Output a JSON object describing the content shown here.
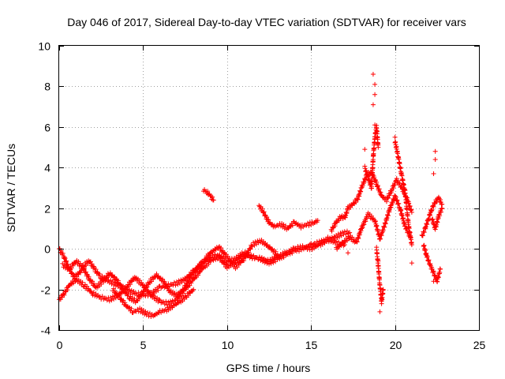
{
  "chart_data": {
    "type": "scatter",
    "title": "Day 046 of 2017, Sidereal Day-to-day VTEC variation (SDTVAR) for receiver vars",
    "xlabel": "GPS time / hours",
    "ylabel": "SDTVAR / TECUs",
    "xlim": [
      0,
      25
    ],
    "ylim": [
      -4,
      10
    ],
    "xticks": [
      0,
      5,
      10,
      15,
      20,
      25
    ],
    "yticks": [
      -4,
      -2,
      0,
      2,
      4,
      6,
      8,
      10
    ],
    "grid": true,
    "marker": "+",
    "series": [
      {
        "name": "SDTVAR",
        "color": "#ff0000",
        "segments": [
          {
            "x": [
              0.0,
              0.3,
              0.6,
              0.9,
              1.2,
              1.5,
              1.8,
              2.1,
              2.5,
              3.0,
              3.5,
              4.0,
              4.5,
              5.0,
              5.5,
              6.0,
              6.5,
              7.0,
              7.5,
              8.0,
              8.5,
              9.0,
              9.5,
              10.0,
              10.5,
              11.0,
              11.5,
              12.0,
              12.5,
              13.0,
              13.5,
              14.0,
              14.5,
              15.0,
              15.5,
              16.0,
              16.5,
              17.0,
              17.3
            ],
            "y": [
              0.0,
              -0.4,
              -1.0,
              -1.4,
              -1.2,
              -0.8,
              -0.6,
              -1.0,
              -1.4,
              -1.6,
              -1.8,
              -2.0,
              -2.2,
              -2.3,
              -2.2,
              -1.9,
              -1.8,
              -1.7,
              -1.5,
              -1.1,
              -0.7,
              -0.4,
              -0.3,
              -0.6,
              -0.5,
              -0.2,
              -0.4,
              -0.5,
              -0.6,
              -0.4,
              -0.2,
              0.0,
              0.1,
              0.0,
              0.2,
              0.4,
              0.6,
              0.8,
              0.8
            ]
          },
          {
            "x": [
              0.0,
              0.3,
              0.6,
              1.0,
              1.5,
              2.0,
              2.5,
              3.0,
              3.5,
              4.0,
              4.5,
              5.0,
              5.5,
              6.0,
              6.5,
              7.0,
              7.5,
              8.0,
              8.5,
              9.0,
              9.5,
              10.0,
              10.5,
              11.0,
              11.5,
              12.0,
              12.5,
              13.0,
              13.5,
              14.0,
              14.5,
              15.0,
              15.5,
              16.0,
              16.5,
              17.0
            ],
            "y": [
              -2.5,
              -2.2,
              -1.8,
              -1.5,
              -1.8,
              -2.2,
              -2.4,
              -2.5,
              -2.3,
              -1.9,
              -1.4,
              -1.8,
              -2.3,
              -2.6,
              -2.7,
              -2.5,
              -2.0,
              -1.5,
              -1.0,
              -0.6,
              -0.4,
              -0.9,
              -0.6,
              -0.3,
              -0.4,
              -0.5,
              -0.7,
              -0.5,
              -0.3,
              -0.1,
              0.0,
              0.2,
              0.3,
              0.5,
              0.3,
              0.2
            ]
          },
          {
            "x": [
              0.2,
              0.6,
              1.0,
              1.4,
              1.8,
              2.2,
              2.6,
              3.0,
              3.4,
              3.8,
              4.2,
              4.6,
              5.0,
              5.4,
              5.8,
              6.2,
              6.6,
              7.0,
              7.4,
              7.8,
              8.2,
              8.6,
              9.0,
              9.5,
              10.0,
              10.5,
              11.0,
              11.5,
              12.0,
              12.5,
              13.0
            ],
            "y": [
              -0.8,
              -1.0,
              -0.6,
              -0.9,
              -1.5,
              -1.9,
              -1.6,
              -1.2,
              -1.5,
              -2.0,
              -2.4,
              -2.6,
              -2.1,
              -1.6,
              -1.3,
              -1.6,
              -2.1,
              -2.3,
              -2.0,
              -1.4,
              -1.0,
              -0.6,
              -0.2,
              0.1,
              -0.4,
              -0.9,
              -0.5,
              0.2,
              0.4,
              0.1,
              -0.3
            ]
          },
          {
            "x": [
              3.2,
              3.6,
              4.0,
              4.4,
              4.8,
              5.2,
              5.6,
              6.0,
              6.4,
              6.8,
              7.2,
              7.6,
              8.0
            ],
            "y": [
              -2.0,
              -2.4,
              -2.8,
              -3.1,
              -3.0,
              -3.2,
              -3.3,
              -3.1,
              -3.0,
              -2.8,
              -2.6,
              -2.3,
              -2.0
            ]
          },
          {
            "x": [
              8.6,
              8.8,
              9.0,
              9.2
            ],
            "y": [
              2.9,
              2.8,
              2.6,
              2.4
            ]
          },
          {
            "x": [
              11.9,
              12.1,
              12.3,
              12.5,
              12.8,
              13.2,
              13.6,
              14.0,
              14.4,
              14.8,
              15.2,
              15.4
            ],
            "y": [
              2.1,
              1.9,
              1.6,
              1.3,
              1.1,
              1.2,
              1.0,
              1.3,
              1.1,
              1.2,
              1.3,
              1.4
            ]
          },
          {
            "x": [
              16.2,
              16.5,
              16.8,
              17.0,
              17.2,
              17.5,
              17.8,
              18.0,
              18.3,
              18.6,
              18.9,
              19.2,
              19.5,
              19.8,
              20.1,
              20.4,
              20.7,
              21.0
            ],
            "y": [
              0.9,
              1.3,
              1.6,
              1.5,
              2.0,
              2.2,
              2.5,
              3.0,
              3.6,
              3.8,
              3.2,
              2.6,
              2.4,
              2.9,
              3.4,
              3.0,
              2.5,
              1.8
            ]
          },
          {
            "x": [
              16.5,
              16.9,
              17.3,
              17.7,
              18.0,
              18.4,
              18.8,
              19.1,
              19.4,
              19.7,
              20.0,
              20.3,
              20.6,
              20.9
            ],
            "y": [
              0.0,
              0.3,
              0.6,
              0.3,
              1.0,
              1.7,
              1.4,
              0.5,
              1.2,
              2.0,
              2.6,
              2.0,
              1.1,
              0.6
            ]
          },
          {
            "x": [
              18.2,
              18.4,
              18.6,
              18.7,
              18.8,
              18.9,
              19.0
            ],
            "y": [
              4.0,
              3.5,
              3.0,
              4.5,
              5.5,
              6.0,
              5.0
            ]
          },
          {
            "x": [
              18.9,
              19.0,
              19.1,
              19.2,
              19.3
            ],
            "y": [
              0.0,
              -0.8,
              -1.8,
              -2.6,
              -2.0
            ]
          },
          {
            "x": [
              20.0,
              20.2,
              20.4,
              20.6,
              20.8,
              21.0
            ],
            "y": [
              5.3,
              4.5,
              3.6,
              2.8,
              1.2,
              0.2
            ]
          },
          {
            "x": [
              21.6,
              21.8,
              22.0,
              22.2,
              22.4,
              22.6,
              22.8
            ],
            "y": [
              0.6,
              1.0,
              1.5,
              2.0,
              2.3,
              2.5,
              2.2
            ]
          },
          {
            "x": [
              21.7,
              21.9,
              22.1,
              22.3,
              22.5,
              22.7
            ],
            "y": [
              0.2,
              -0.4,
              -0.8,
              -1.2,
              -1.6,
              -1.0
            ]
          },
          {
            "x": [
              22.2,
              22.4,
              22.6,
              22.8
            ],
            "y": [
              1.5,
              1.0,
              1.6,
              2.0
            ]
          }
        ],
        "points": [
          [
            18.7,
            8.6
          ],
          [
            18.8,
            8.1
          ],
          [
            18.8,
            7.6
          ],
          [
            18.7,
            7.1
          ],
          [
            18.8,
            6.1
          ],
          [
            18.2,
            4.9
          ],
          [
            20.0,
            5.5
          ],
          [
            22.4,
            4.8
          ],
          [
            22.4,
            4.4
          ],
          [
            22.3,
            3.7
          ],
          [
            19.1,
            -3.1
          ],
          [
            19.2,
            -2.7
          ],
          [
            22.3,
            -1.6
          ],
          [
            21.0,
            -0.7
          ],
          [
            17.2,
            -0.2
          ],
          [
            19.0,
            -0.6
          ]
        ]
      }
    ]
  }
}
